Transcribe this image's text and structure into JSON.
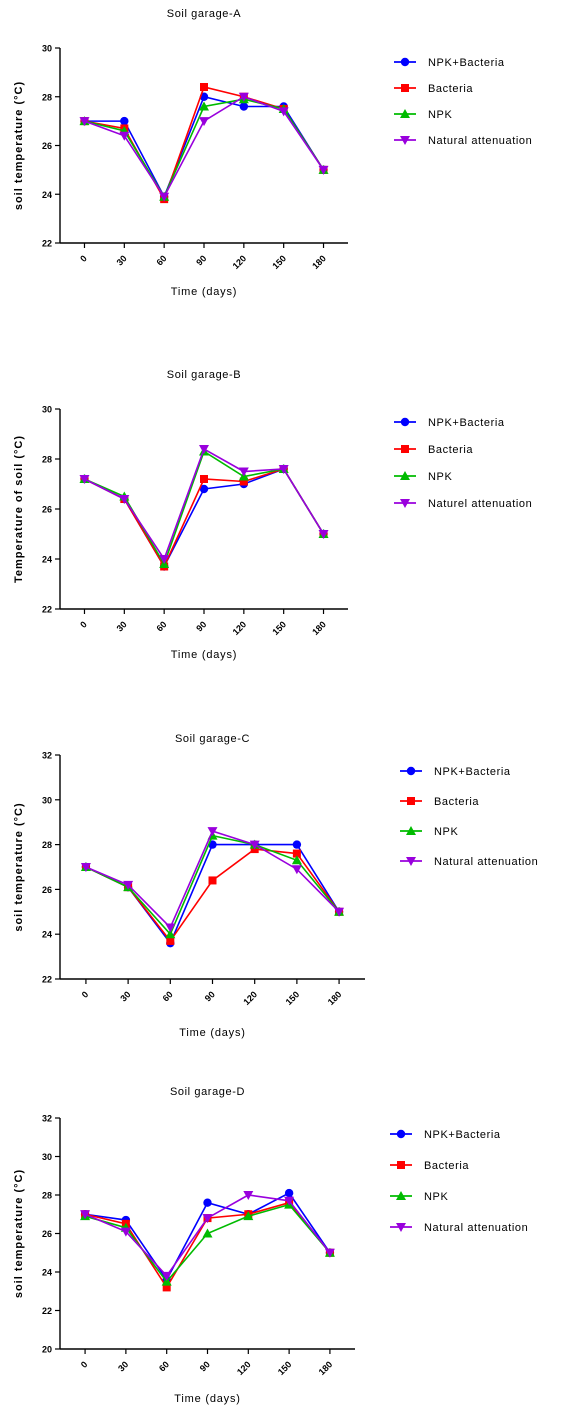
{
  "chart_data": [
    {
      "type": "line",
      "title": "Soil garage-A",
      "xlabel": "Time (days)",
      "ylabel": "soil temperature (°C)",
      "x": [
        0,
        30,
        60,
        90,
        120,
        150,
        180
      ],
      "xticks": [
        "0",
        "30",
        "60",
        "90",
        "120",
        "150",
        "180"
      ],
      "ylim": [
        22,
        30
      ],
      "yticks": [
        22,
        24,
        26,
        28,
        30
      ],
      "legend_position": "right",
      "series": [
        {
          "name": "NPK+Bacteria",
          "color": "#0000ff",
          "marker": "circle",
          "values": [
            27.0,
            27.0,
            23.9,
            28.0,
            27.6,
            27.6,
            25.0
          ]
        },
        {
          "name": "Bacteria",
          "color": "#ff0000",
          "marker": "square",
          "values": [
            27.0,
            26.7,
            23.8,
            28.4,
            28.0,
            27.5,
            25.0
          ]
        },
        {
          "name": "NPK",
          "color": "#00bb00",
          "marker": "triangle-up",
          "values": [
            27.0,
            26.6,
            23.9,
            27.6,
            27.9,
            27.5,
            25.0
          ]
        },
        {
          "name": "Natural attenuation",
          "color": "#9900dd",
          "marker": "triangle-down",
          "values": [
            27.0,
            26.4,
            23.9,
            27.0,
            28.0,
            27.4,
            25.0
          ]
        }
      ]
    },
    {
      "type": "line",
      "title": "Soil garage-B",
      "xlabel": "Time (days)",
      "ylabel": "Temperature of soil (°C)",
      "x": [
        0,
        30,
        60,
        90,
        120,
        150,
        180
      ],
      "xticks": [
        "0",
        "30",
        "60",
        "90",
        "120",
        "150",
        "180"
      ],
      "ylim": [
        22,
        30
      ],
      "yticks": [
        22,
        24,
        26,
        28,
        30
      ],
      "legend_position": "right",
      "series": [
        {
          "name": "NPK+Bacteria",
          "color": "#0000ff",
          "marker": "circle",
          "values": [
            27.2,
            26.4,
            23.7,
            26.8,
            27.0,
            27.6,
            25.0
          ]
        },
        {
          "name": "Bacteria",
          "color": "#ff0000",
          "marker": "square",
          "values": [
            27.2,
            26.4,
            23.7,
            27.2,
            27.1,
            27.6,
            25.0
          ]
        },
        {
          "name": "NPK",
          "color": "#00bb00",
          "marker": "triangle-up",
          "values": [
            27.2,
            26.5,
            23.8,
            28.3,
            27.3,
            27.6,
            25.0
          ]
        },
        {
          "name": "Naturel attenuation",
          "color": "#9900dd",
          "marker": "triangle-down",
          "values": [
            27.2,
            26.4,
            24.0,
            28.4,
            27.5,
            27.6,
            25.0
          ]
        }
      ]
    },
    {
      "type": "line",
      "title": "Soil garage-C",
      "xlabel": "Time (days)",
      "ylabel": "soil temperature (°C)",
      "x": [
        0,
        30,
        60,
        90,
        120,
        150,
        180
      ],
      "xticks": [
        "0",
        "30",
        "60",
        "90",
        "120",
        "150",
        "180"
      ],
      "ylim": [
        22,
        32
      ],
      "yticks": [
        22,
        24,
        26,
        28,
        30,
        32
      ],
      "legend_position": "right",
      "series": [
        {
          "name": "NPK+Bacteria",
          "color": "#0000ff",
          "marker": "circle",
          "values": [
            27.0,
            26.1,
            23.6,
            28.0,
            28.0,
            28.0,
            25.0
          ]
        },
        {
          "name": "Bacteria",
          "color": "#ff0000",
          "marker": "square",
          "values": [
            27.0,
            26.1,
            23.7,
            26.4,
            27.8,
            27.6,
            25.0
          ]
        },
        {
          "name": "NPK",
          "color": "#00bb00",
          "marker": "triangle-up",
          "values": [
            27.0,
            26.1,
            24.0,
            28.4,
            28.0,
            27.3,
            25.0
          ]
        },
        {
          "name": "Natural attenuation",
          "color": "#9900dd",
          "marker": "triangle-down",
          "values": [
            27.0,
            26.2,
            24.3,
            28.6,
            28.0,
            26.9,
            25.0
          ]
        }
      ]
    },
    {
      "type": "line",
      "title": "Soil garage-D",
      "xlabel": "Time (days)",
      "ylabel": "soil temperature (°C)",
      "x": [
        0,
        30,
        60,
        90,
        120,
        150,
        180
      ],
      "xticks": [
        "0",
        "30",
        "60",
        "90",
        "120",
        "150",
        "180"
      ],
      "ylim": [
        20,
        32
      ],
      "yticks": [
        20,
        22,
        24,
        26,
        28,
        30,
        32
      ],
      "legend_position": "right",
      "series": [
        {
          "name": "NPK+Bacteria",
          "color": "#0000ff",
          "marker": "circle",
          "values": [
            27.0,
            26.7,
            23.6,
            27.6,
            27.0,
            28.1,
            25.0
          ]
        },
        {
          "name": "Bacteria",
          "color": "#ff0000",
          "marker": "square",
          "values": [
            27.0,
            26.5,
            23.2,
            26.8,
            27.0,
            27.6,
            25.0
          ]
        },
        {
          "name": "NPK",
          "color": "#00bb00",
          "marker": "triangle-up",
          "values": [
            26.9,
            26.3,
            23.5,
            26.0,
            26.9,
            27.5,
            25.0
          ]
        },
        {
          "name": "Natural attenuation",
          "color": "#9900dd",
          "marker": "triangle-down",
          "values": [
            27.0,
            26.1,
            23.8,
            26.8,
            28.0,
            27.7,
            25.0
          ]
        }
      ]
    }
  ]
}
